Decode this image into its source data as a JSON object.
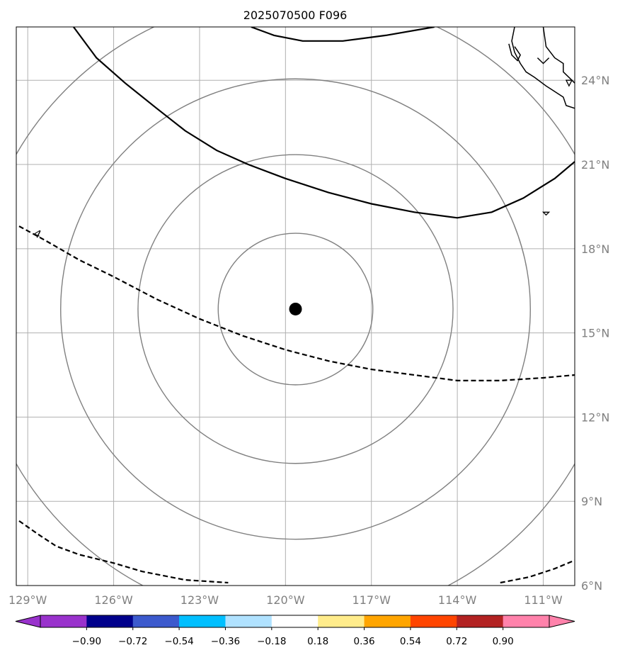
{
  "title": "2025070500 F096",
  "map": {
    "lon_range": [
      -129.4,
      -109.9
    ],
    "lat_range": [
      6.0,
      25.9
    ],
    "lon_ticks": [
      {
        "value": -129,
        "label": "129°W"
      },
      {
        "value": -126,
        "label": "126°W"
      },
      {
        "value": -123,
        "label": "123°W"
      },
      {
        "value": -120,
        "label": "120°W"
      },
      {
        "value": -117,
        "label": "117°W"
      },
      {
        "value": -114,
        "label": "114°W"
      },
      {
        "value": -111,
        "label": "111°W"
      }
    ],
    "lat_ticks": [
      {
        "value": 24,
        "label": "24°N"
      },
      {
        "value": 21,
        "label": "21°N"
      },
      {
        "value": 18,
        "label": "18°N"
      },
      {
        "value": 15,
        "label": "15°N"
      },
      {
        "value": 12,
        "label": "12°N"
      },
      {
        "value": 9,
        "label": "9°N"
      },
      {
        "value": 6,
        "label": "6°N"
      }
    ],
    "center": {
      "lon": -119.65,
      "lat": 15.85
    },
    "range_ring_radii_deg": [
      2.7,
      5.5,
      8.2,
      11.2
    ],
    "contour_label": "4",
    "solid_contours": [
      [
        [
          -127.4,
          25.9
        ],
        [
          -126.6,
          24.8
        ],
        [
          -125.6,
          23.9
        ],
        [
          -124.5,
          23.0
        ],
        [
          -123.5,
          22.2
        ],
        [
          -122.4,
          21.5
        ],
        [
          -121.3,
          21.0
        ],
        [
          -120.0,
          20.5
        ],
        [
          -118.5,
          20.0
        ],
        [
          -117.0,
          19.6
        ],
        [
          -115.5,
          19.3
        ],
        [
          -114.0,
          19.1
        ],
        [
          -112.8,
          19.3
        ],
        [
          -111.7,
          19.8
        ],
        [
          -110.6,
          20.5
        ],
        [
          -109.9,
          21.1
        ]
      ],
      [
        [
          -121.2,
          25.9
        ],
        [
          -120.4,
          25.6
        ],
        [
          -119.4,
          25.4
        ],
        [
          -118.0,
          25.4
        ],
        [
          -116.5,
          25.6
        ],
        [
          -114.8,
          25.9
        ]
      ]
    ],
    "dashed_contours": [
      [
        [
          -129.3,
          18.8
        ],
        [
          -128.4,
          18.3
        ],
        [
          -127.2,
          17.6
        ],
        [
          -126.0,
          17.0
        ],
        [
          -124.5,
          16.2
        ],
        [
          -123.0,
          15.5
        ],
        [
          -121.5,
          14.9
        ],
        [
          -120.0,
          14.4
        ],
        [
          -118.5,
          14.0
        ],
        [
          -117.0,
          13.7
        ],
        [
          -115.5,
          13.5
        ],
        [
          -114.0,
          13.3
        ],
        [
          -112.5,
          13.3
        ],
        [
          -111.0,
          13.4
        ],
        [
          -109.9,
          13.5
        ]
      ],
      [
        [
          -129.3,
          8.3
        ],
        [
          -128.6,
          7.8
        ],
        [
          -128.0,
          7.4
        ],
        [
          -127.2,
          7.1
        ],
        [
          -126.0,
          6.8
        ],
        [
          -125.0,
          6.5
        ],
        [
          -123.5,
          6.2
        ],
        [
          -122.0,
          6.1
        ]
      ],
      [
        [
          -112.5,
          6.1
        ],
        [
          -111.5,
          6.3
        ],
        [
          -110.6,
          6.6
        ],
        [
          -109.9,
          6.9
        ]
      ]
    ],
    "coastline_segments": [
      [
        [
          -111.0,
          25.9
        ],
        [
          -110.9,
          25.2
        ],
        [
          -110.6,
          24.8
        ],
        [
          -110.3,
          24.6
        ],
        [
          -110.3,
          24.3
        ],
        [
          -110.0,
          24.0
        ],
        [
          -109.9,
          23.9
        ]
      ],
      [
        [
          -109.9,
          23.0
        ],
        [
          -110.2,
          23.1
        ],
        [
          -110.3,
          23.4
        ],
        [
          -110.6,
          23.6
        ],
        [
          -110.9,
          23.8
        ],
        [
          -111.3,
          24.1
        ],
        [
          -111.6,
          24.3
        ],
        [
          -111.8,
          24.6
        ],
        [
          -112.0,
          25.0
        ],
        [
          -112.1,
          25.4
        ],
        [
          -112.0,
          25.9
        ]
      ],
      [
        [
          -112.2,
          25.3
        ],
        [
          -112.1,
          24.9
        ],
        [
          -111.9,
          24.7
        ],
        [
          -111.8,
          24.9
        ],
        [
          -112.0,
          25.2
        ]
      ],
      [
        [
          -111.2,
          24.8
        ],
        [
          -111.0,
          24.6
        ],
        [
          -110.8,
          24.8
        ]
      ]
    ],
    "islands": [
      [
        [
          -111.0,
          19.3
        ],
        [
          -110.9,
          19.2
        ],
        [
          -110.8,
          19.3
        ],
        [
          -111.0,
          19.3
        ]
      ],
      [
        [
          -110.2,
          24.0
        ],
        [
          -110.1,
          23.8
        ],
        [
          -110.0,
          24.0
        ]
      ]
    ]
  },
  "colorbar": {
    "colors": [
      "#9932CC",
      "#00008B",
      "#3C5ACD",
      "#00BFFF",
      "#B0E2FF",
      "#FFFFFF",
      "#FFEC8B",
      "#FFA500",
      "#FF4500",
      "#B22222",
      "#FF82AB"
    ],
    "ticks": [
      "−0.90",
      "−0.72",
      "−0.54",
      "−0.36",
      "−0.18",
      "0.18",
      "0.36",
      "0.54",
      "0.72",
      "0.90"
    ]
  },
  "colors": {
    "grid": "#b0b0b0",
    "rings": "#808080",
    "contour": "#000000",
    "tick_text": "#808080"
  }
}
